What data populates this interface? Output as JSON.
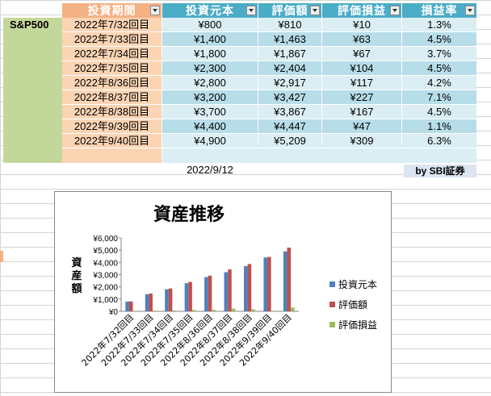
{
  "table": {
    "headers": {
      "period": "投資期間",
      "principal": "投資元本",
      "valuation": "評価額",
      "gain": "評価損益",
      "rate": "損益率"
    },
    "fund": "S&P500",
    "rows": [
      {
        "period": "2022年7/32回目",
        "principal": "¥800",
        "valuation": "¥810",
        "gain": "¥10",
        "rate": "1.3%"
      },
      {
        "period": "2022年7/33回目",
        "principal": "¥1,400",
        "valuation": "¥1,463",
        "gain": "¥63",
        "rate": "4.5%"
      },
      {
        "period": "2022年7/34回目",
        "principal": "¥1,800",
        "valuation": "¥1,867",
        "gain": "¥67",
        "rate": "3.7%"
      },
      {
        "period": "2022年7/35回目",
        "principal": "¥2,300",
        "valuation": "¥2,404",
        "gain": "¥104",
        "rate": "4.5%"
      },
      {
        "period": "2022年8/36回目",
        "principal": "¥2,800",
        "valuation": "¥2,917",
        "gain": "¥117",
        "rate": "4.2%"
      },
      {
        "period": "2022年8/37回目",
        "principal": "¥3,200",
        "valuation": "¥3,427",
        "gain": "¥227",
        "rate": "7.1%"
      },
      {
        "period": "2022年8/38回目",
        "principal": "¥3,700",
        "valuation": "¥3,867",
        "gain": "¥167",
        "rate": "4.5%"
      },
      {
        "period": "2022年9/39回目",
        "principal": "¥4,400",
        "valuation": "¥4,447",
        "gain": "¥47",
        "rate": "1.1%"
      },
      {
        "period": "2022年9/40回目",
        "principal": "¥4,900",
        "valuation": "¥5,209",
        "gain": "¥309",
        "rate": "6.3%"
      }
    ],
    "date": "2022/9/12",
    "credit": "by SBI証券"
  },
  "colors": {
    "header_orange": "#f4b183",
    "header_blue": "#4bacc6",
    "period_fill": "#fbd4b4",
    "row_light": "#daeef3",
    "row_dark": "#b7dde8",
    "label_green": "#c4d79b",
    "series_blue": "#4f81bd",
    "series_red": "#c0504d",
    "series_green": "#9bbb59"
  },
  "chart_data": {
    "type": "bar",
    "title": "資産推移",
    "ylabel": "資産額",
    "xlabel": "",
    "ylim": [
      0,
      6000
    ],
    "yticks": [
      "¥0",
      "¥1,000",
      "¥2,000",
      "¥3,000",
      "¥4,000",
      "¥5,000",
      "¥6,000"
    ],
    "categories": [
      "2022年7/32回目",
      "2022年7/33回目",
      "2022年7/34回目",
      "2022年7/35回目",
      "2022年8/36回目",
      "2022年8/37回目",
      "2022年8/38回目",
      "2022年9/39回目",
      "2022年9/40回目"
    ],
    "series": [
      {
        "name": "投資元本",
        "values": [
          800,
          1400,
          1800,
          2300,
          2800,
          3200,
          3700,
          4400,
          4900
        ]
      },
      {
        "name": "評価額",
        "values": [
          810,
          1463,
          1867,
          2404,
          2917,
          3427,
          3867,
          4447,
          5209
        ]
      },
      {
        "name": "評価損益",
        "values": [
          10,
          63,
          67,
          104,
          117,
          227,
          167,
          47,
          309
        ]
      }
    ],
    "legend": "right",
    "grid": false
  }
}
